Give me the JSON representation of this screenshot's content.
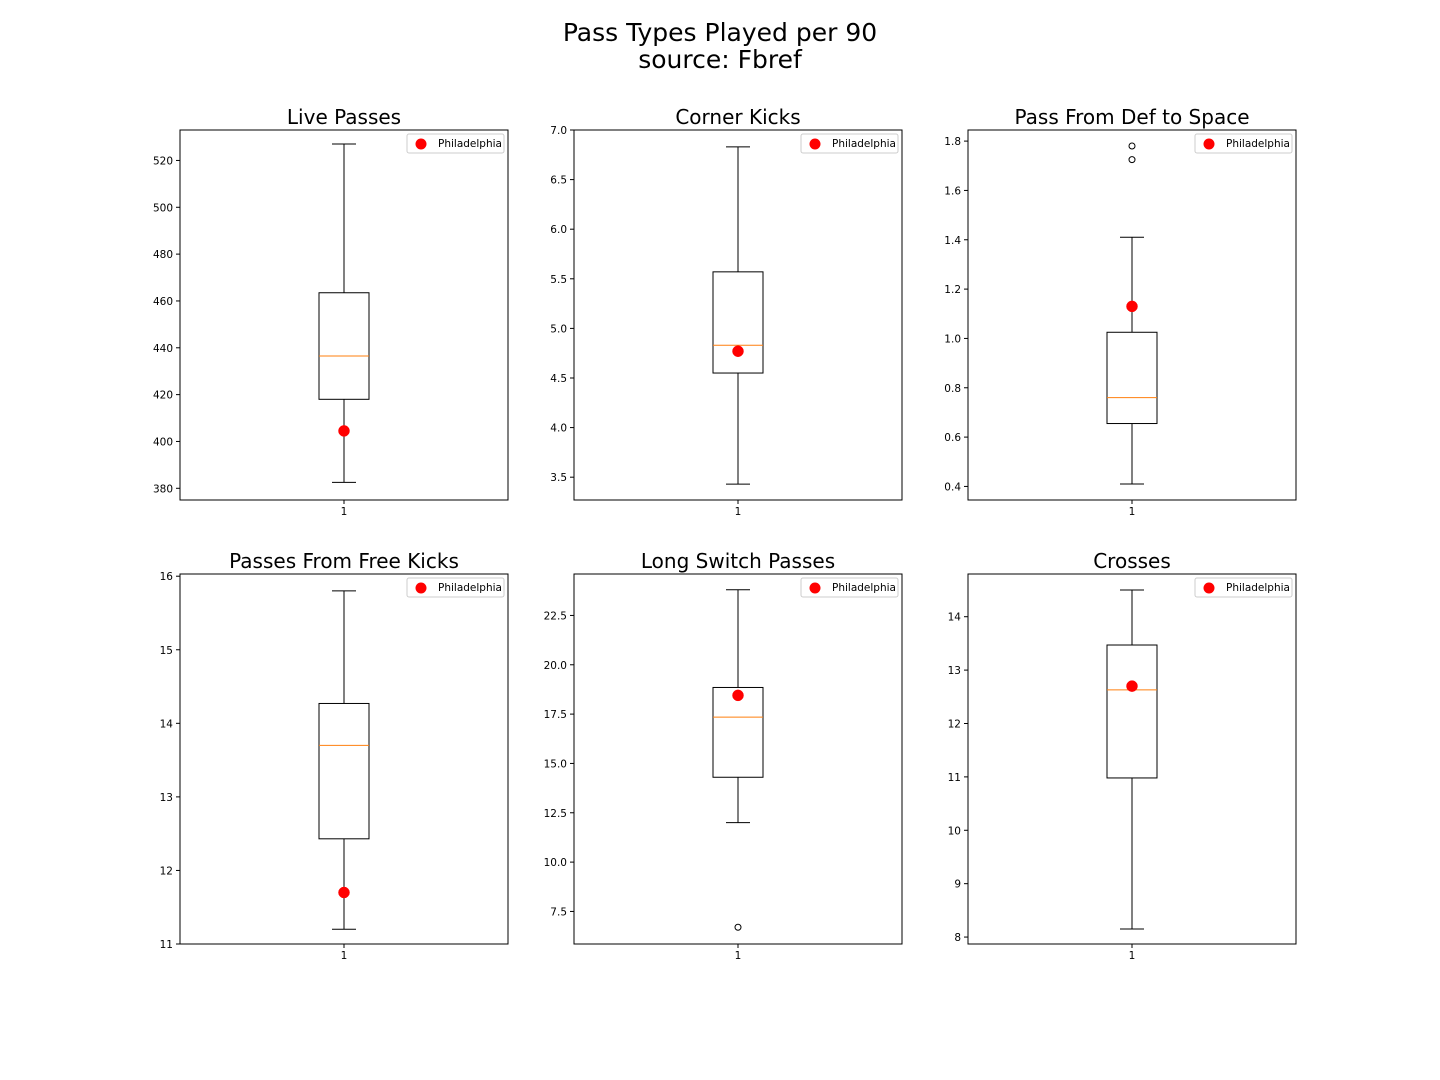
{
  "figure": {
    "title_line1": "Pass Types Played per 90",
    "title_line2": "source: Fbref"
  },
  "colors": {
    "box": "#000000",
    "median": "#ff7f0e",
    "highlight": "#ff0000",
    "legend_border": "#cccccc"
  },
  "chart_data": [
    {
      "type": "box",
      "title": "Live Passes",
      "xtick": "1",
      "yticks": [
        380,
        400,
        420,
        440,
        460,
        480,
        500,
        520
      ],
      "ylim": [
        375,
        533
      ],
      "box": {
        "whisker_low": 382.5,
        "q1": 418,
        "median": 436.5,
        "q3": 463.5,
        "whisker_high": 527
      },
      "outliers": [],
      "highlight": {
        "label": "Philadelphia",
        "value": 404.5
      },
      "legend": [
        "Philadelphia"
      ]
    },
    {
      "type": "box",
      "title": "Corner Kicks",
      "xtick": "1",
      "yticks": [
        3.5,
        4.0,
        4.5,
        5.0,
        5.5,
        6.0,
        6.5,
        7.0
      ],
      "ytick_labels": [
        "3.5",
        "4.0",
        "4.5",
        "5.0",
        "5.5",
        "6.0",
        "6.5",
        "7.0"
      ],
      "ylim": [
        3.27,
        7.0
      ],
      "box": {
        "whisker_low": 3.43,
        "q1": 4.55,
        "median": 4.83,
        "q3": 5.57,
        "whisker_high": 6.83
      },
      "outliers": [],
      "highlight": {
        "label": "Philadelphia",
        "value": 4.77
      },
      "legend": [
        "Philadelphia"
      ]
    },
    {
      "type": "box",
      "title": "Pass From Def to Space",
      "xtick": "1",
      "yticks": [
        0.4,
        0.6,
        0.8,
        1.0,
        1.2,
        1.4,
        1.6,
        1.8
      ],
      "ytick_labels": [
        "0.4",
        "0.6",
        "0.8",
        "1.0",
        "1.2",
        "1.4",
        "1.6",
        "1.8"
      ],
      "ylim": [
        0.345,
        1.845
      ],
      "box": {
        "whisker_low": 0.41,
        "q1": 0.655,
        "median": 0.76,
        "q3": 1.025,
        "whisker_high": 1.41
      },
      "outliers": [
        1.725,
        1.78
      ],
      "highlight": {
        "label": "Philadelphia",
        "value": 1.13
      },
      "legend": [
        "Philadelphia"
      ]
    },
    {
      "type": "box",
      "title": "Passes From Free Kicks",
      "xtick": "1",
      "yticks": [
        11,
        12,
        13,
        14,
        15,
        16
      ],
      "ylim": [
        11.0,
        16.03
      ],
      "box": {
        "whisker_low": 11.2,
        "q1": 12.43,
        "median": 13.7,
        "q3": 14.27,
        "whisker_high": 15.8
      },
      "outliers": [],
      "highlight": {
        "label": "Philadelphia",
        "value": 11.7
      },
      "legend": [
        "Philadelphia"
      ]
    },
    {
      "type": "box",
      "title": "Long Switch Passes",
      "xtick": "1",
      "yticks": [
        7.5,
        10.0,
        12.5,
        15.0,
        17.5,
        20.0,
        22.5
      ],
      "ytick_labels": [
        "7.5",
        "10.0",
        "12.5",
        "15.0",
        "17.5",
        "20.0",
        "22.5"
      ],
      "ylim": [
        5.85,
        24.6
      ],
      "box": {
        "whisker_low": 12.0,
        "q1": 14.3,
        "median": 17.35,
        "q3": 18.85,
        "whisker_high": 23.8
      },
      "outliers": [
        6.7
      ],
      "highlight": {
        "label": "Philadelphia",
        "value": 18.45
      },
      "legend": [
        "Philadelphia"
      ]
    },
    {
      "type": "box",
      "title": "Crosses",
      "xtick": "1",
      "yticks": [
        8,
        9,
        10,
        11,
        12,
        13,
        14
      ],
      "ylim": [
        7.87,
        14.8
      ],
      "box": {
        "whisker_low": 8.15,
        "q1": 10.98,
        "median": 12.63,
        "q3": 13.47,
        "whisker_high": 14.5
      },
      "outliers": [],
      "highlight": {
        "label": "Philadelphia",
        "value": 12.7
      },
      "legend": [
        "Philadelphia"
      ]
    }
  ]
}
